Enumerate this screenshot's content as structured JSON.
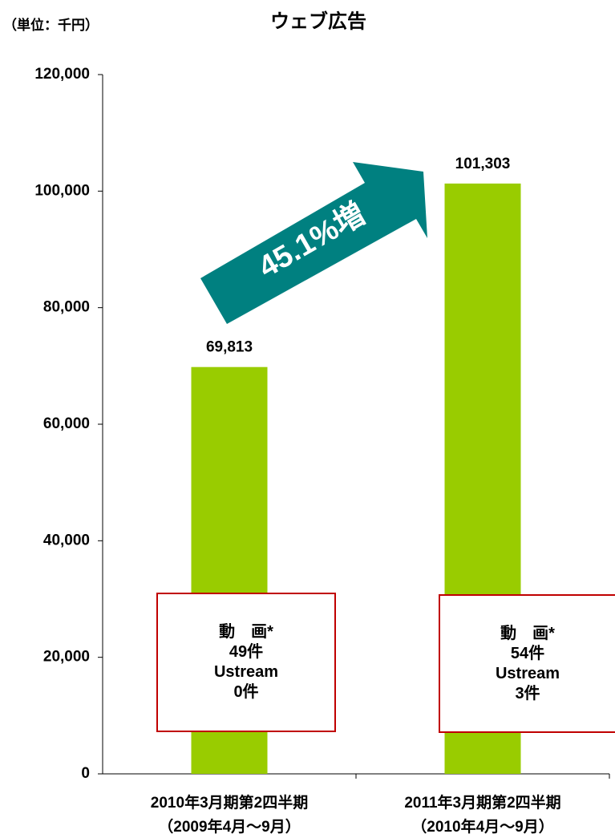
{
  "chart_data": {
    "type": "bar",
    "title": "ウェブ広告",
    "unit_label": "（単位：千円）",
    "categories": [
      "2010年3月期第2四半期\n（2009年4月～9月）",
      "2011年3月期第2四半期\n（2010年4月～9月）"
    ],
    "values": [
      69813,
      101303
    ],
    "value_labels": [
      "69,813",
      "101,303"
    ],
    "color": "#99cc00",
    "ylim": [
      0,
      120000
    ],
    "yticks": [
      0,
      {
        "value": 20000,
        "label": "20,000"
      },
      {
        "value": 40000,
        "label": "40,000"
      },
      {
        "value": 60000,
        "label": "60,000"
      },
      {
        "value": 80000,
        "label": "80,000"
      },
      {
        "value": 100000,
        "label": "100,000"
      },
      {
        "value": 120000,
        "label": "120,000"
      }
    ],
    "grid": false,
    "annotations": [
      {
        "text": "45.1%増"
      }
    ],
    "notes": [
      [
        "動　画*",
        "49件",
        "Ustream",
        "0件"
      ],
      [
        "動　画*",
        "54件",
        "Ustream",
        "3件"
      ]
    ]
  }
}
